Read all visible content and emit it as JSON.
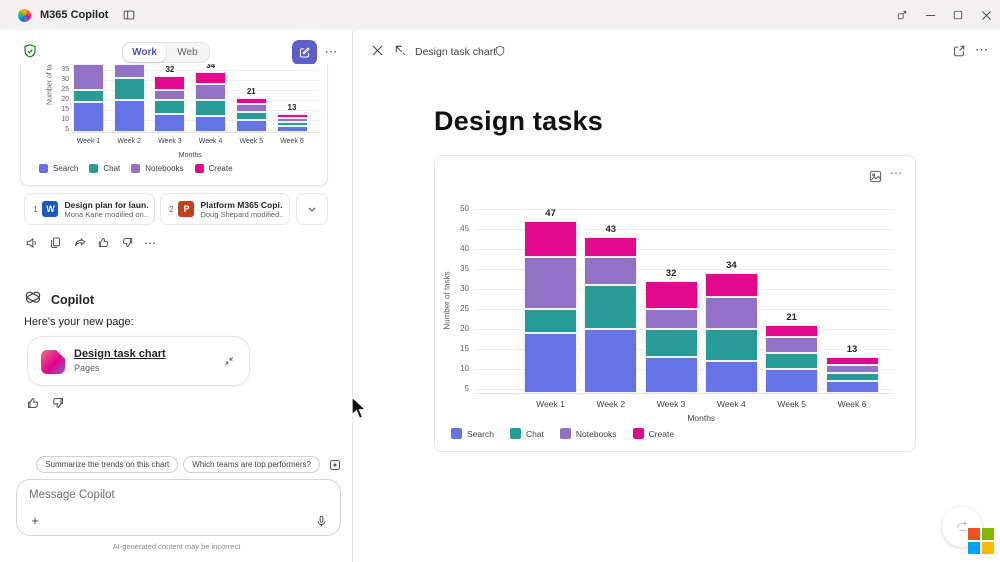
{
  "titlebar": {
    "app_name": "M365 Copilot"
  },
  "chat": {
    "tabs": {
      "work": "Work",
      "web": "Web"
    },
    "references": [
      {
        "index": "1",
        "file_type": "word",
        "title": "Design plan for laun…",
        "subtitle": "Mona Kane modified on…"
      },
      {
        "index": "2",
        "file_type": "powerpoint",
        "title": "Platform M365 Copi…",
        "subtitle": "Doug Shepard modified…"
      }
    ],
    "copilot_label": "Copilot",
    "message": "Here's your new page:",
    "page_card": {
      "title": "Design task chart",
      "subtitle": "Pages"
    },
    "suggestions": [
      {
        "label": "Summarize the trends on this chart"
      },
      {
        "label": "Which teams are top performers?"
      }
    ],
    "composer": {
      "placeholder": "Message Copilot"
    },
    "disclaimer": "AI-generated content may be incorrect"
  },
  "page": {
    "header_title": "Design task chart",
    "title": "Design tasks"
  },
  "chart_data": {
    "type": "bar",
    "stacked": true,
    "categories": [
      "Week 1",
      "Week 2",
      "Week 3",
      "Week 4",
      "Week 5",
      "Week 6"
    ],
    "series": [
      {
        "name": "Search",
        "color": "#6673e5",
        "values": [
          19,
          20,
          13,
          12,
          10,
          7
        ]
      },
      {
        "name": "Chat",
        "color": "#299b96",
        "values": [
          6,
          11,
          7,
          8,
          4,
          2
        ]
      },
      {
        "name": "Notebooks",
        "color": "#9172c5",
        "values": [
          13,
          7,
          5,
          8,
          4,
          2
        ]
      },
      {
        "name": "Create",
        "color": "#e10a8c",
        "values": [
          9,
          5,
          7,
          6,
          3,
          2
        ]
      }
    ],
    "totals": [
      47,
      43,
      32,
      34,
      21,
      13
    ],
    "xlabel": "Months",
    "ylabel": "Number of tasks",
    "y_ticks": [
      5,
      10,
      15,
      20,
      25,
      30,
      35,
      40,
      45,
      50
    ],
    "ylim": [
      4,
      52
    ],
    "grid": true,
    "legend_position": "bottom-left"
  },
  "icons": {
    "more": "⋯",
    "plus": "+"
  },
  "colors": {
    "accent": "#5b5fc7",
    "work_tab_text": "#4f52b2",
    "shield_green": "#107c10",
    "ms_logo": [
      "#f25022",
      "#7fba00",
      "#00a4ef",
      "#ffb900"
    ]
  }
}
